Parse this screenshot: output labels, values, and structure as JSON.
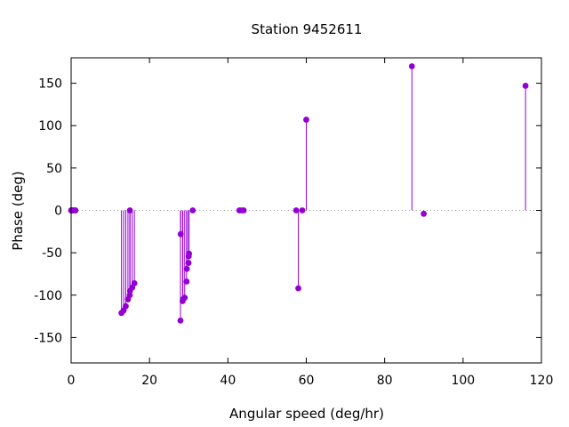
{
  "chart_data": {
    "type": "scatter",
    "style": "impulses-with-points",
    "title": "Station 9452611",
    "xlabel": "Angular speed (deg/hr)",
    "ylabel": "Phase (deg)",
    "xlim": [
      0,
      120
    ],
    "ylim": [
      -180,
      180
    ],
    "xticks": [
      0,
      20,
      40,
      60,
      80,
      100,
      120
    ],
    "yticks": [
      -150,
      -100,
      -50,
      0,
      50,
      100,
      150
    ],
    "xtick_labels": [
      "0",
      "20",
      "40",
      "60",
      "80",
      "100",
      "120"
    ],
    "ytick_labels": [
      "-150",
      "-100",
      "-50",
      "0",
      "50",
      "100",
      "150"
    ],
    "grid": false,
    "zero_line": "dotted",
    "series": [
      {
        "color": "#9400d3",
        "points": [
          {
            "x": 0.0,
            "y": 0
          },
          {
            "x": 0.04,
            "y": 0
          },
          {
            "x": 0.08,
            "y": 0
          },
          {
            "x": 0.5,
            "y": 0
          },
          {
            "x": 0.55,
            "y": 0
          },
          {
            "x": 1.02,
            "y": 0
          },
          {
            "x": 1.1,
            "y": 0
          },
          {
            "x": 12.85,
            "y": -121
          },
          {
            "x": 13.4,
            "y": -118
          },
          {
            "x": 13.94,
            "y": -113
          },
          {
            "x": 14.5,
            "y": -105
          },
          {
            "x": 14.96,
            "y": -100
          },
          {
            "x": 15.0,
            "y": 0
          },
          {
            "x": 15.04,
            "y": -95
          },
          {
            "x": 15.59,
            "y": -91
          },
          {
            "x": 16.14,
            "y": -86
          },
          {
            "x": 27.97,
            "y": -28
          },
          {
            "x": 27.9,
            "y": -130
          },
          {
            "x": 28.44,
            "y": -107
          },
          {
            "x": 28.51,
            "y": -105
          },
          {
            "x": 28.98,
            "y": -103
          },
          {
            "x": 29.46,
            "y": -84
          },
          {
            "x": 29.53,
            "y": -69
          },
          {
            "x": 29.96,
            "y": -62
          },
          {
            "x": 30.0,
            "y": -54
          },
          {
            "x": 30.08,
            "y": -51
          },
          {
            "x": 31.02,
            "y": 0
          },
          {
            "x": 42.93,
            "y": 0
          },
          {
            "x": 43.48,
            "y": 0
          },
          {
            "x": 44.03,
            "y": 0
          },
          {
            "x": 57.42,
            "y": 0
          },
          {
            "x": 57.97,
            "y": -92
          },
          {
            "x": 58.98,
            "y": 0
          },
          {
            "x": 60.0,
            "y": 107
          },
          {
            "x": 86.95,
            "y": 170
          },
          {
            "x": 89.97,
            "y": -4
          },
          {
            "x": 115.94,
            "y": 147
          }
        ]
      }
    ]
  }
}
